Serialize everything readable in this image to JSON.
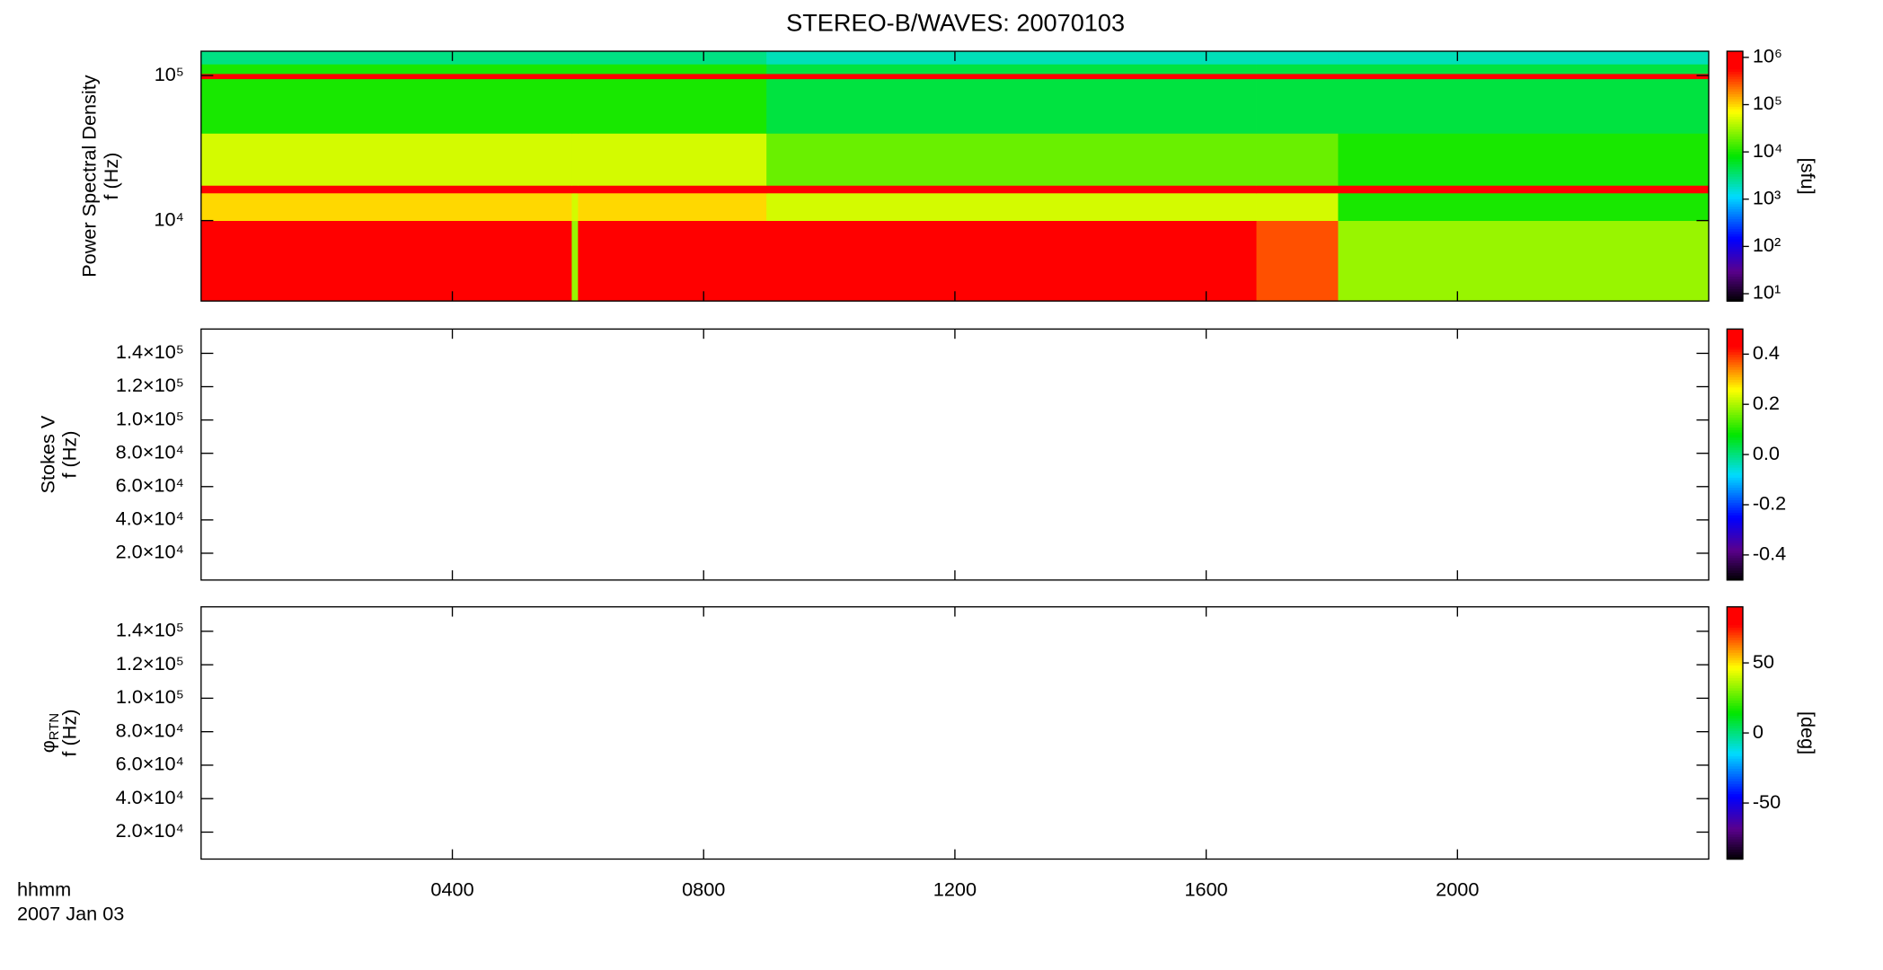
{
  "title": "STEREO-B/WAVES: 20070103",
  "x_label": "hhmm",
  "date_label": "2007 Jan 03",
  "xlim": [
    0,
    24
  ],
  "xticks": [
    {
      "value": 4,
      "label": "0400"
    },
    {
      "value": 8,
      "label": "0800"
    },
    {
      "value": 12,
      "label": "1200"
    },
    {
      "value": 16,
      "label": "1600"
    },
    {
      "value": 20,
      "label": "2000"
    }
  ],
  "chart_data": [
    {
      "type": "heatmap",
      "y_label": [
        {
          "text": "Power Spectral Density"
        },
        {
          "text": "f (Hz)"
        }
      ],
      "log_y": true,
      "ylim": [
        2790,
        147000
      ],
      "yticks": [
        {
          "value": 10000,
          "label": "10⁴"
        },
        {
          "value": 100000,
          "label": "10⁵"
        }
      ],
      "x_edges": [
        0,
        5.9,
        6.0,
        9.0,
        16.8,
        18.1,
        24
      ],
      "y_edges": [
        2790,
        10000,
        15500,
        17500,
        40000,
        95000,
        103000,
        120000,
        147000
      ],
      "values": [
        [
          1000000,
          30000,
          1000000,
          1000000,
          300000,
          30000
        ],
        [
          100000,
          50000,
          100000,
          50000,
          50000,
          10000
        ],
        [
          1000000,
          1000000,
          1000000,
          1000000,
          1000000,
          1000000
        ],
        [
          50000,
          50000,
          50000,
          20000,
          20000,
          10000
        ],
        [
          10000,
          10000,
          10000,
          5000,
          5000,
          5000
        ],
        [
          800000,
          800000,
          800000,
          800000,
          800000,
          800000
        ],
        [
          10000,
          10000,
          10000,
          5000,
          5000,
          5000
        ],
        [
          3000,
          3000,
          3000,
          2000,
          2000,
          2000
        ]
      ],
      "colorbar": {
        "label": "[sfu]",
        "log": true,
        "clim": [
          7,
          1350000
        ],
        "ticks": [
          {
            "value": 10,
            "label": "10¹"
          },
          {
            "value": 100,
            "label": "10²"
          },
          {
            "value": 1000,
            "label": "10³"
          },
          {
            "value": 10000,
            "label": "10⁴"
          },
          {
            "value": 100000,
            "label": "10⁵"
          },
          {
            "value": 1000000,
            "label": "10⁶"
          }
        ]
      }
    },
    {
      "type": "heatmap",
      "y_label": [
        {
          "text": "Stokes V"
        },
        {
          "text": "f (Hz)"
        }
      ],
      "log_y": false,
      "ylim": [
        3900,
        154600
      ],
      "yticks": [
        {
          "value": 20000,
          "label": "2.0×10⁴"
        },
        {
          "value": 40000,
          "label": "4.0×10⁴"
        },
        {
          "value": 60000,
          "label": "6.0×10⁴"
        },
        {
          "value": 80000,
          "label": "8.0×10⁴"
        },
        {
          "value": 100000,
          "label": "1.0×10⁵"
        },
        {
          "value": 120000,
          "label": "1.2×10⁵"
        },
        {
          "value": 140000,
          "label": "1.4×10⁵"
        }
      ],
      "colorbar": {
        "log": false,
        "clim": [
          -0.5,
          0.5
        ],
        "ticks": [
          -0.4,
          -0.2,
          {
            "value": 0,
            "label": "0.0"
          },
          0.2,
          0.4
        ]
      }
    },
    {
      "type": "heatmap",
      "y_label": [
        {
          "text": "φ",
          "sub": "RTN"
        },
        {
          "text": "f (Hz)"
        }
      ],
      "log_y": false,
      "ylim": [
        3900,
        154600
      ],
      "yticks": [
        {
          "value": 20000,
          "label": "2.0×10⁴"
        },
        {
          "value": 40000,
          "label": "4.0×10⁴"
        },
        {
          "value": 60000,
          "label": "6.0×10⁴"
        },
        {
          "value": 80000,
          "label": "8.0×10⁴"
        },
        {
          "value": 100000,
          "label": "1.0×10⁵"
        },
        {
          "value": 120000,
          "label": "1.2×10⁵"
        },
        {
          "value": 140000,
          "label": "1.4×10⁵"
        }
      ],
      "colorbar": {
        "label": "[deg]",
        "log": false,
        "clim": [
          -90,
          90
        ],
        "ticks": [
          -50,
          0,
          50
        ]
      }
    }
  ]
}
